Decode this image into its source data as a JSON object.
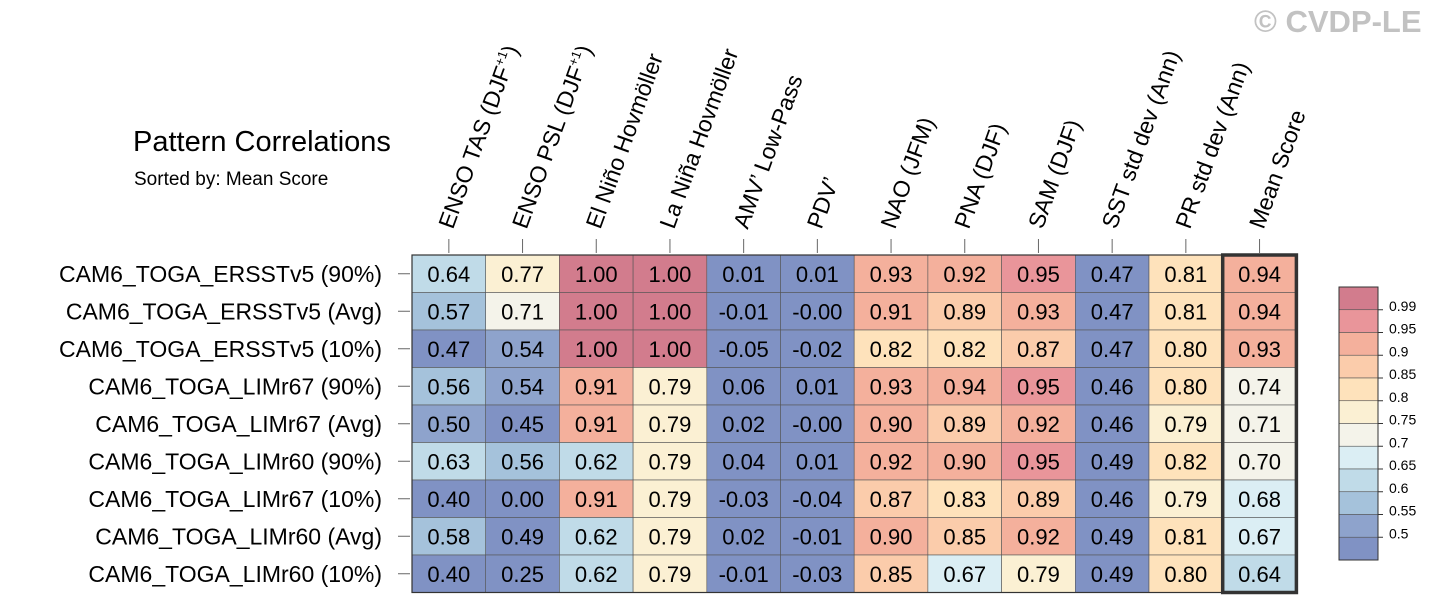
{
  "watermark": "© CVDP-LE",
  "chart_data": {
    "type": "heatmap",
    "title": "Pattern Correlations",
    "subtitle": "Sorted by: Mean Score",
    "columns": [
      {
        "label": "ENSO TAS (DJF",
        "sup": "+1",
        "suffix": ")"
      },
      {
        "label": "ENSO PSL (DJF",
        "sup": "+1",
        "suffix": ")"
      },
      {
        "label": "El Niño Hovmöller",
        "sup": "",
        "suffix": ""
      },
      {
        "label": "La Niña Hovmöller",
        "sup": "",
        "suffix": ""
      },
      {
        "label": "AMV’ Low-Pass",
        "sup": "",
        "suffix": ""
      },
      {
        "label": "PDV’",
        "sup": "",
        "suffix": ""
      },
      {
        "label": "NAO (JFM)",
        "sup": "",
        "suffix": ""
      },
      {
        "label": "PNA (DJF)",
        "sup": "",
        "suffix": ""
      },
      {
        "label": "SAM (DJF)",
        "sup": "",
        "suffix": ""
      },
      {
        "label": "SST std dev (Ann)",
        "sup": "",
        "suffix": ""
      },
      {
        "label": "PR std dev (Ann)",
        "sup": "",
        "suffix": ""
      },
      {
        "label": "Mean Score",
        "sup": "",
        "suffix": ""
      }
    ],
    "rows": [
      {
        "label": "CAM6_TOGA_ERSSTv5 (90%)",
        "values": [
          "0.64",
          "0.77",
          "1.00",
          "1.00",
          "0.01",
          "0.01",
          "0.93",
          "0.92",
          "0.95",
          "0.47",
          "0.81",
          "0.94"
        ]
      },
      {
        "label": "CAM6_TOGA_ERSSTv5 (Avg)",
        "values": [
          "0.57",
          "0.71",
          "1.00",
          "1.00",
          "-0.01",
          "-0.00",
          "0.91",
          "0.89",
          "0.93",
          "0.47",
          "0.81",
          "0.94"
        ]
      },
      {
        "label": "CAM6_TOGA_ERSSTv5 (10%)",
        "values": [
          "0.47",
          "0.54",
          "1.00",
          "1.00",
          "-0.05",
          "-0.02",
          "0.82",
          "0.82",
          "0.87",
          "0.47",
          "0.80",
          "0.93"
        ]
      },
      {
        "label": "CAM6_TOGA_LIMr67 (90%)",
        "values": [
          "0.56",
          "0.54",
          "0.91",
          "0.79",
          "0.06",
          "0.01",
          "0.93",
          "0.94",
          "0.95",
          "0.46",
          "0.80",
          "0.74"
        ]
      },
      {
        "label": "CAM6_TOGA_LIMr67 (Avg)",
        "values": [
          "0.50",
          "0.45",
          "0.91",
          "0.79",
          "0.02",
          "-0.00",
          "0.90",
          "0.89",
          "0.92",
          "0.46",
          "0.79",
          "0.71"
        ]
      },
      {
        "label": "CAM6_TOGA_LIMr60 (90%)",
        "values": [
          "0.63",
          "0.56",
          "0.62",
          "0.79",
          "0.04",
          "0.01",
          "0.92",
          "0.90",
          "0.95",
          "0.49",
          "0.82",
          "0.70"
        ]
      },
      {
        "label": "CAM6_TOGA_LIMr67 (10%)",
        "values": [
          "0.40",
          "0.00",
          "0.91",
          "0.79",
          "-0.03",
          "-0.04",
          "0.87",
          "0.83",
          "0.89",
          "0.46",
          "0.79",
          "0.68"
        ]
      },
      {
        "label": "CAM6_TOGA_LIMr60 (Avg)",
        "values": [
          "0.58",
          "0.49",
          "0.62",
          "0.79",
          "0.02",
          "-0.01",
          "0.90",
          "0.85",
          "0.92",
          "0.49",
          "0.81",
          "0.67"
        ]
      },
      {
        "label": "CAM6_TOGA_LIMr60 (10%)",
        "values": [
          "0.40",
          "0.25",
          "0.62",
          "0.79",
          "-0.01",
          "-0.03",
          "0.85",
          "0.67",
          "0.79",
          "0.49",
          "0.80",
          "0.64"
        ]
      }
    ],
    "colorbar": {
      "boundaries": [
        0.99,
        0.95,
        0.9,
        0.85,
        0.8,
        0.75,
        0.7,
        0.65,
        0.6,
        0.55,
        0.5
      ],
      "labels": [
        "0.99",
        "0.95",
        "0.9",
        "0.85",
        "0.8",
        "0.75",
        "0.7",
        "0.65",
        "0.6",
        "0.55",
        "0.5"
      ],
      "colors": [
        "#d27c8d",
        "#e9959a",
        "#f4b09c",
        "#fbccab",
        "#fee2bb",
        "#fbf0d3",
        "#f4f3ea",
        "#dbeef4",
        "#c0dbe8",
        "#a5c2db",
        "#8ea3cc",
        "#8092c4"
      ]
    },
    "highlight_column": "Mean Score"
  }
}
